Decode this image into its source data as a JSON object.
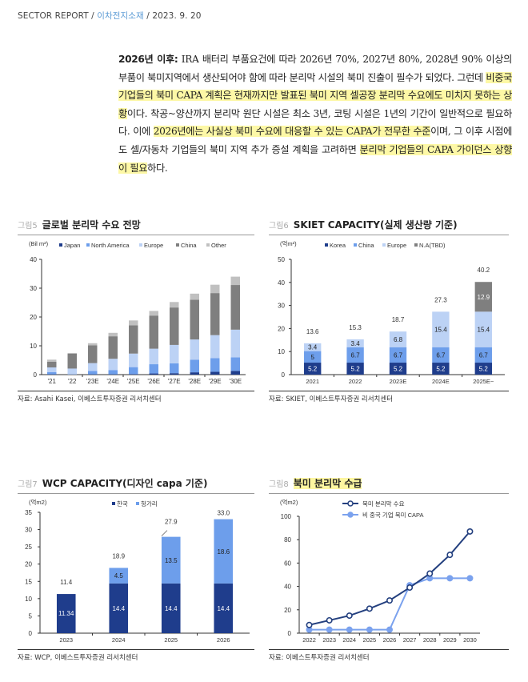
{
  "header": {
    "report": "SECTOR REPORT /",
    "category": "이차전지소재",
    "date": "/ 2023. 9. 20"
  },
  "paragraph": {
    "lead": "2026년 이후:",
    "s1": " IRA 배터리 부품요건에 따라 2026년 70%, 2027년 80%, 2028년 90% 이상의 부품이 북미지역에서 생산되어야 함에 따라 분리막 시설의 북미 진출이 필수가 되었다. 그런데 ",
    "h1": "비중국 기업들의 북미 CAPA 계획은 현재까지만 발표된 북미 지역 셀공장 분리막 수요에도 미치지 못하는 상황",
    "s2": "이다. 착공~양산까지 분리막 원단 시설은 최소 3년, 코팅 시설은 1년의 기간이 일반적으로 필요하다. 이에 ",
    "h2": "2026년에는 사실상 북미 수요에 대응할 수 있는 CAPA가 전무한 수준",
    "s3": "이며, 그 이후 시점에도 셀/자동차 기업들의 북미 지역 추가 증설 계획을 고려하면 ",
    "h3": "분리막 기업들의 CAPA 가이던스 상향이 필요",
    "s4": "하다."
  },
  "colors": {
    "japan": "#1f3d8c",
    "north_america": "#6d9eeb",
    "europe": "#bcd2f5",
    "china": "#7f7f7f",
    "other": "#c0c0c0",
    "korea": "#1f3d8c",
    "hungary": "#6d9eeb",
    "tbd": "#7f7f7f",
    "demand_line": "#24407f",
    "capa_line": "#7ba2ee",
    "highlight": "#fdf8a6"
  },
  "chart_data": [
    {
      "type": "bar",
      "stacked": true,
      "fig_num": "그림5",
      "title": "글로벌 분리막 수요 전망",
      "unit_label": "(Bil m²)",
      "categories": [
        "'21",
        "'22",
        "'23E",
        "'24E",
        "'25E",
        "'26E",
        "'27E",
        "'28E",
        "'29E",
        "'30E"
      ],
      "series": [
        {
          "name": "Japan",
          "values": [
            0.1,
            0.0,
            0.1,
            0.1,
            0.2,
            0.4,
            0.5,
            0.8,
            1.0,
            1.3
          ]
        },
        {
          "name": "North America",
          "values": [
            0.8,
            0.1,
            1.2,
            1.5,
            2.4,
            3.2,
            3.4,
            4.4,
            4.7,
            4.7
          ]
        },
        {
          "name": "Europe",
          "values": [
            1.6,
            2.0,
            2.7,
            3.9,
            4.7,
            5.4,
            6.4,
            7.0,
            8.0,
            9.6
          ]
        },
        {
          "name": "China",
          "values": [
            2.0,
            5.2,
            6.2,
            7.8,
            9.8,
            11.5,
            13.0,
            13.8,
            14.6,
            15.5
          ]
        },
        {
          "name": "Other",
          "values": [
            0.7,
            0.2,
            0.7,
            1.2,
            1.7,
            1.6,
            1.9,
            2.1,
            2.9,
            2.9
          ]
        }
      ],
      "ylim": [
        0,
        40
      ],
      "yticks": [
        "0",
        "10",
        "20",
        "30",
        "40"
      ],
      "legend": "top",
      "source": "자료: Asahi Kasei, 이베스트투자증권 리서치센터"
    },
    {
      "type": "bar",
      "stacked": true,
      "fig_num": "그림6",
      "title": "SKIET CAPACITY(실제 생산량 기준)",
      "unit_label": "(억m²)",
      "categories": [
        "2021",
        "2022",
        "2023E",
        "2024E",
        "2025E~"
      ],
      "series": [
        {
          "name": "Korea",
          "values": [
            5.2,
            5.2,
            5.2,
            5.2,
            5.2
          ],
          "labels": [
            "5.2",
            "5.2",
            "5.2",
            "5.2",
            "5.2"
          ]
        },
        {
          "name": "China",
          "values": [
            5,
            6.7,
            6.7,
            6.7,
            6.7
          ],
          "labels": [
            "5",
            "6.7",
            "6.7",
            "6.7",
            "6.7"
          ]
        },
        {
          "name": "Europe",
          "values": [
            3.4,
            3.4,
            6.8,
            15.4,
            15.4
          ],
          "labels": [
            "3.4",
            "3.4",
            "6.8",
            "15.4",
            "15.4"
          ]
        },
        {
          "name": "N.A(TBD)",
          "values": [
            0,
            0,
            0,
            0,
            12.9
          ],
          "labels": [
            "",
            "",
            "",
            "",
            "12.9"
          ]
        }
      ],
      "totals": [
        "13.6",
        "15.3",
        "18.7",
        "27.3",
        "40.2"
      ],
      "ylim": [
        0,
        50
      ],
      "yticks": [
        "0",
        "10",
        "20",
        "30",
        "40",
        "50"
      ],
      "legend": "top",
      "source": "자료: SKIET, 이베스트투자증권 리서치센터"
    },
    {
      "type": "bar",
      "stacked": true,
      "fig_num": "그림7",
      "title": "WCP CAPACITY(디자인 capa 기준)",
      "unit_label": "(억m2)",
      "categories": [
        "2023",
        "2024",
        "2025",
        "2026"
      ],
      "series": [
        {
          "name": "한국",
          "values": [
            11.34,
            14.4,
            14.4,
            14.4
          ],
          "labels": [
            "11.34",
            "14.4",
            "14.4",
            "14.4"
          ]
        },
        {
          "name": "헝가리",
          "values": [
            0,
            4.5,
            13.5,
            18.6
          ],
          "labels": [
            "",
            "4.5",
            "13.5",
            "18.6"
          ]
        }
      ],
      "totals": [
        "11.4",
        "18.9",
        "27.9",
        "33.0"
      ],
      "ylim": [
        0,
        35
      ],
      "yticks": [
        "0",
        "5",
        "10",
        "15",
        "20",
        "25",
        "30",
        "35"
      ],
      "legend": "top",
      "source": "자료: WCP, 이베스트투자증권 리서치센터"
    },
    {
      "type": "line",
      "fig_num": "그림8",
      "title": "북미 분리막 수급",
      "unit_label": "(억m2)",
      "x": [
        "2022",
        "2023",
        "2024",
        "2025",
        "2026",
        "2027",
        "2028",
        "2029",
        "2030"
      ],
      "series": [
        {
          "name": "북미 분리막 수요",
          "values": [
            7,
            11,
            15,
            21,
            28,
            39,
            51,
            67,
            87
          ]
        },
        {
          "name": "비 중국 기업 북미 CAPA",
          "values": [
            3,
            3,
            3,
            3,
            3,
            41,
            47,
            47,
            47
          ]
        }
      ],
      "ylim": [
        0,
        100
      ],
      "yticks": [
        "0",
        "20",
        "40",
        "60",
        "80",
        "100"
      ],
      "legend": "top",
      "source": "자료: 이베스트투자증권 리서치센터"
    }
  ]
}
